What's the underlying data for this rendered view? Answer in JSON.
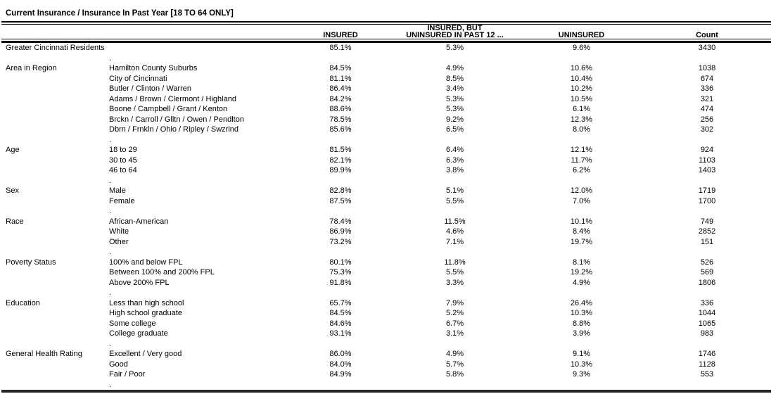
{
  "title": "Current Insurance / Insurance In Past Year [18 TO 64 ONLY]",
  "table": {
    "columns": [
      {
        "line1": "",
        "line2": "INSURED"
      },
      {
        "line1": "INSURED, BUT",
        "line2": "UNINSURED IN PAST 12 ..."
      },
      {
        "line1": "",
        "line2": "UNINSURED"
      },
      {
        "line1": "",
        "line2": "Count"
      }
    ],
    "row_separator": ".",
    "overall_row": {
      "label": "Greater Cincinnati Residents",
      "values": [
        "85.1%",
        "5.3%",
        "9.6%",
        "3430"
      ]
    },
    "sections": [
      {
        "category": "Area in Region",
        "rows": [
          {
            "label": "Hamilton County Suburbs",
            "values": [
              "84.5%",
              "4.9%",
              "10.6%",
              "1038"
            ]
          },
          {
            "label": "City of Cincinnati",
            "values": [
              "81.1%",
              "8.5%",
              "10.4%",
              "674"
            ]
          },
          {
            "label": "Butler / Clinton / Warren",
            "values": [
              "86.4%",
              "3.4%",
              "10.2%",
              "336"
            ]
          },
          {
            "label": "Adams / Brown / Clermont / Highland",
            "values": [
              "84.2%",
              "5.3%",
              "10.5%",
              "321"
            ]
          },
          {
            "label": "Boone / Campbell / Grant / Kenton",
            "values": [
              "88.6%",
              "5.3%",
              "6.1%",
              "474"
            ]
          },
          {
            "label": "Brckn / Carroll / Glltn / Owen / Pendlton",
            "values": [
              "78.5%",
              "9.2%",
              "12.3%",
              "256"
            ]
          },
          {
            "label": "Dbrn / Frnkln / Ohio / Ripley / Swzrlnd",
            "values": [
              "85.6%",
              "6.5%",
              "8.0%",
              "302"
            ]
          }
        ]
      },
      {
        "category": "Age",
        "rows": [
          {
            "label": "18 to 29",
            "values": [
              "81.5%",
              "6.4%",
              "12.1%",
              "924"
            ]
          },
          {
            "label": "30 to 45",
            "values": [
              "82.1%",
              "6.3%",
              "11.7%",
              "1103"
            ]
          },
          {
            "label": "46 to 64",
            "values": [
              "89.9%",
              "3.8%",
              "6.2%",
              "1403"
            ]
          }
        ]
      },
      {
        "category": "Sex",
        "rows": [
          {
            "label": "Male",
            "values": [
              "82.8%",
              "5.1%",
              "12.0%",
              "1719"
            ]
          },
          {
            "label": "Female",
            "values": [
              "87.5%",
              "5.5%",
              "7.0%",
              "1700"
            ]
          }
        ]
      },
      {
        "category": "Race",
        "rows": [
          {
            "label": "African-American",
            "values": [
              "78.4%",
              "11.5%",
              "10.1%",
              "749"
            ]
          },
          {
            "label": "White",
            "values": [
              "86.9%",
              "4.6%",
              "8.4%",
              "2852"
            ]
          },
          {
            "label": "Other",
            "values": [
              "73.2%",
              "7.1%",
              "19.7%",
              "151"
            ]
          }
        ]
      },
      {
        "category": "Poverty Status",
        "rows": [
          {
            "label": "100% and below FPL",
            "values": [
              "80.1%",
              "11.8%",
              "8.1%",
              "526"
            ]
          },
          {
            "label": "Between 100% and 200% FPL",
            "values": [
              "75.3%",
              "5.5%",
              "19.2%",
              "569"
            ]
          },
          {
            "label": "Above 200% FPL",
            "values": [
              "91.8%",
              "3.3%",
              "4.9%",
              "1806"
            ]
          }
        ]
      },
      {
        "category": "Education",
        "rows": [
          {
            "label": "Less than high school",
            "values": [
              "65.7%",
              "7.9%",
              "26.4%",
              "336"
            ]
          },
          {
            "label": "High school graduate",
            "values": [
              "84.5%",
              "5.2%",
              "10.3%",
              "1044"
            ]
          },
          {
            "label": "Some college",
            "values": [
              "84.6%",
              "6.7%",
              "8.8%",
              "1065"
            ]
          },
          {
            "label": "College graduate",
            "values": [
              "93.1%",
              "3.1%",
              "3.9%",
              "983"
            ]
          }
        ]
      },
      {
        "category": "General Health Rating",
        "rows": [
          {
            "label": "Excellent / Very good",
            "values": [
              "86.0%",
              "4.9%",
              "9.1%",
              "1746"
            ]
          },
          {
            "label": "Good",
            "values": [
              "84.0%",
              "5.7%",
              "10.3%",
              "1128"
            ]
          },
          {
            "label": "Fair / Poor",
            "values": [
              "84.9%",
              "5.8%",
              "9.3%",
              "553"
            ]
          }
        ]
      }
    ]
  }
}
